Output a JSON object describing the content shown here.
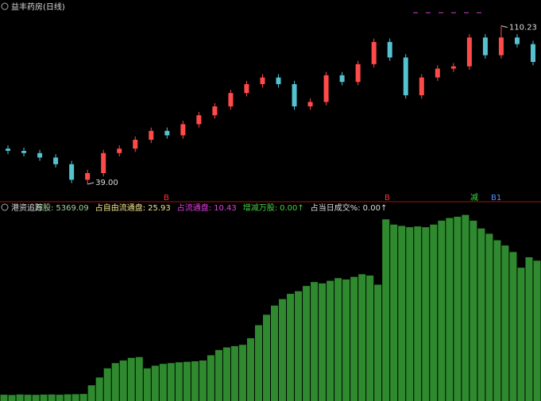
{
  "chart_data": [
    {
      "type": "candlestick",
      "title": "益丰药房(日线)",
      "open": [
        55,
        54,
        53,
        51,
        48,
        41,
        44,
        53,
        55,
        59,
        63,
        61,
        66,
        70,
        74,
        80,
        84,
        87,
        84,
        74,
        76,
        88,
        85,
        93,
        103,
        96,
        79,
        87,
        91,
        92,
        105,
        97,
        105,
        102
      ],
      "high": [
        56.5,
        55.5,
        54.5,
        52.5,
        49.5,
        45.5,
        54.5,
        56.5,
        60.5,
        64.5,
        64.5,
        67.5,
        71.5,
        75.5,
        81.5,
        85.5,
        88.5,
        88.5,
        85.5,
        77.5,
        89.5,
        89.5,
        94.5,
        104.5,
        104.5,
        97.5,
        88.5,
        92.5,
        93.5,
        106.5,
        106.5,
        110.23,
        106.5,
        103.5
      ],
      "low": [
        52.5,
        51.5,
        49.5,
        46.5,
        39.5,
        39,
        42.5,
        51.5,
        53.5,
        57.5,
        59.5,
        59.5,
        64.5,
        68.5,
        72.5,
        78.5,
        82.5,
        82.5,
        72.5,
        72.5,
        74.5,
        83.5,
        83.5,
        91.5,
        94.5,
        77.5,
        77.5,
        85.5,
        89.5,
        90.5,
        95.5,
        95.5,
        100.5,
        92.5
      ],
      "close": [
        54,
        53,
        51,
        48,
        41,
        44,
        53,
        55,
        59,
        63,
        61,
        66,
        70,
        74,
        80,
        84,
        87,
        84,
        74,
        76,
        88,
        85,
        93,
        103,
        96,
        79,
        87,
        91,
        92,
        105,
        97,
        105,
        102,
        94
      ],
      "up_color": "#ff4a4a",
      "down_color": "#54c2cf",
      "ylim": [
        34,
        114
      ],
      "annotations": [
        "110.23",
        "39.00"
      ],
      "signals": [
        "B",
        "B",
        "减",
        "B1"
      ]
    },
    {
      "type": "bar",
      "title": "港资追踪",
      "values": [
        240,
        230,
        250,
        240,
        235,
        245,
        250,
        240,
        255,
        260,
        270,
        600,
        900,
        1250,
        1450,
        1550,
        1650,
        1680,
        1250,
        1350,
        1420,
        1450,
        1480,
        1500,
        1520,
        1550,
        1750,
        1950,
        2050,
        2100,
        2150,
        2400,
        2900,
        3300,
        3650,
        3900,
        4100,
        4200,
        4400,
        4550,
        4500,
        4600,
        4700,
        4650,
        4750,
        4850,
        4800,
        4450,
        6950,
        6750,
        6700,
        6650,
        6680,
        6650,
        6750,
        6900,
        7000,
        7050,
        7120,
        6900,
        6600,
        6400,
        6150,
        5950,
        5700,
        5100,
        5500,
        5369.09
      ],
      "color": "#2f8a2f",
      "ylim": [
        0,
        7200
      ],
      "legend": [
        {
          "label": "万股:",
          "value": "5369.09",
          "color": "#9fd09f"
        },
        {
          "label": "占自由流通盘:",
          "value": "25.93",
          "color": "#f0e68c"
        },
        {
          "label": "占流通盘:",
          "value": "10.43",
          "color": "#e040e0"
        },
        {
          "label": "增减万股:",
          "value": "0.00↑",
          "color": "#40d040"
        },
        {
          "label": "占当日成交%:",
          "value": "0.00↑",
          "color": "#dddddd"
        }
      ]
    }
  ]
}
